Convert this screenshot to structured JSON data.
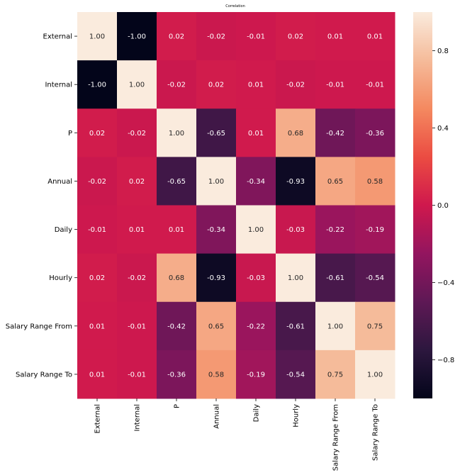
{
  "chart_data": {
    "type": "heatmap",
    "title": "Correlation",
    "xlabel": "",
    "ylabel": "",
    "rows": [
      "External",
      "Internal",
      "P",
      "Annual",
      "Daily",
      "Hourly",
      "Salary Range From",
      "Salary Range To"
    ],
    "columns": [
      "External",
      "Internal",
      "P",
      "Annual",
      "Daily",
      "Hourly",
      "Salary Range From",
      "Salary Range To"
    ],
    "values": [
      [
        1.0,
        -1.0,
        0.02,
        -0.02,
        -0.01,
        0.02,
        0.01,
        0.01
      ],
      [
        -1.0,
        1.0,
        -0.02,
        0.02,
        0.01,
        -0.02,
        -0.01,
        -0.01
      ],
      [
        0.02,
        -0.02,
        1.0,
        -0.65,
        0.01,
        0.68,
        -0.42,
        -0.36
      ],
      [
        -0.02,
        0.02,
        -0.65,
        1.0,
        -0.34,
        -0.93,
        0.65,
        0.58
      ],
      [
        -0.01,
        0.01,
        0.01,
        -0.34,
        1.0,
        -0.03,
        -0.22,
        -0.19
      ],
      [
        0.02,
        -0.02,
        0.68,
        -0.93,
        -0.03,
        1.0,
        -0.61,
        -0.54
      ],
      [
        0.01,
        -0.01,
        -0.42,
        0.65,
        -0.22,
        -0.61,
        1.0,
        0.75
      ],
      [
        0.01,
        -0.01,
        -0.36,
        0.58,
        -0.19,
        -0.54,
        0.75,
        1.0
      ]
    ],
    "colorbar": {
      "range": [
        -1.0,
        1.0
      ],
      "ticks": [
        -0.8,
        -0.4,
        0.0,
        0.4,
        0.8
      ],
      "tick_labels": [
        "−0.8",
        "−0.4",
        "0.0",
        "0.4",
        "0.8"
      ]
    },
    "colormap": "rocket",
    "grid": false,
    "legend": "colorbar-right"
  }
}
